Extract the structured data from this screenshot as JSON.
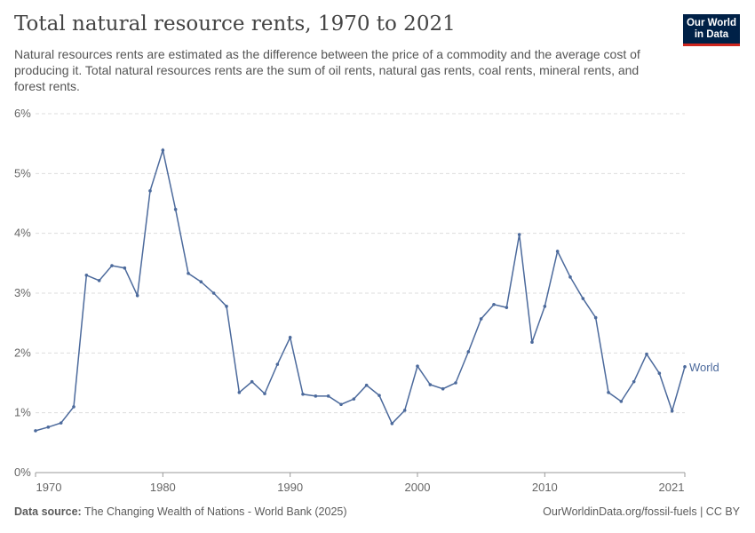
{
  "header": {
    "title": "Total natural resource rents, 1970 to 2021",
    "subtitle": "Natural resources rents are estimated as the difference between the price of a commodity and the average cost of producing it. Total natural resources rents are the sum of oil rents, natural gas rents, coal rents, mineral rents, and forest rents.",
    "logo": "Our World in Data"
  },
  "footer": {
    "source_label": "Data source:",
    "source": " The Changing Wealth of Nations - World Bank (2025)",
    "link": "OurWorldinData.org/fossil-fuels | CC BY"
  },
  "colors": {
    "series": "#4c6a9c",
    "grid": "#ddd",
    "axis": "#999"
  },
  "chart_data": {
    "type": "line",
    "title": "Total natural resource rents, 1970 to 2021",
    "xlim": [
      1970,
      2021
    ],
    "ylim": [
      0,
      6
    ],
    "x_ticks": [
      1970,
      1980,
      1990,
      2000,
      2010,
      2021
    ],
    "y_ticks": [
      "0%",
      "1%",
      "2%",
      "3%",
      "4%",
      "5%",
      "6%"
    ],
    "grid": "horizontal dashed",
    "series": [
      {
        "name": "World",
        "x": [
          1970,
          1971,
          1972,
          1973,
          1974,
          1975,
          1976,
          1977,
          1978,
          1979,
          1980,
          1981,
          1982,
          1983,
          1984,
          1985,
          1986,
          1987,
          1988,
          1989,
          1990,
          1991,
          1992,
          1993,
          1994,
          1995,
          1996,
          1997,
          1998,
          1999,
          2000,
          2001,
          2002,
          2003,
          2004,
          2005,
          2006,
          2007,
          2008,
          2009,
          2010,
          2011,
          2012,
          2013,
          2014,
          2015,
          2016,
          2017,
          2018,
          2019,
          2020,
          2021
        ],
        "values": [
          0.7,
          0.76,
          0.83,
          1.1,
          3.3,
          3.21,
          3.46,
          3.42,
          2.96,
          4.71,
          5.39,
          4.4,
          3.33,
          3.19,
          3.0,
          2.78,
          1.34,
          1.52,
          1.32,
          1.81,
          2.26,
          1.31,
          1.28,
          1.28,
          1.14,
          1.23,
          1.46,
          1.29,
          0.82,
          1.04,
          1.78,
          1.47,
          1.4,
          1.5,
          2.02,
          2.57,
          2.81,
          2.76,
          3.98,
          2.18,
          2.78,
          3.7,
          3.27,
          2.91,
          2.59,
          1.34,
          1.19,
          1.52,
          1.98,
          1.66,
          1.03,
          1.77
        ]
      }
    ]
  }
}
